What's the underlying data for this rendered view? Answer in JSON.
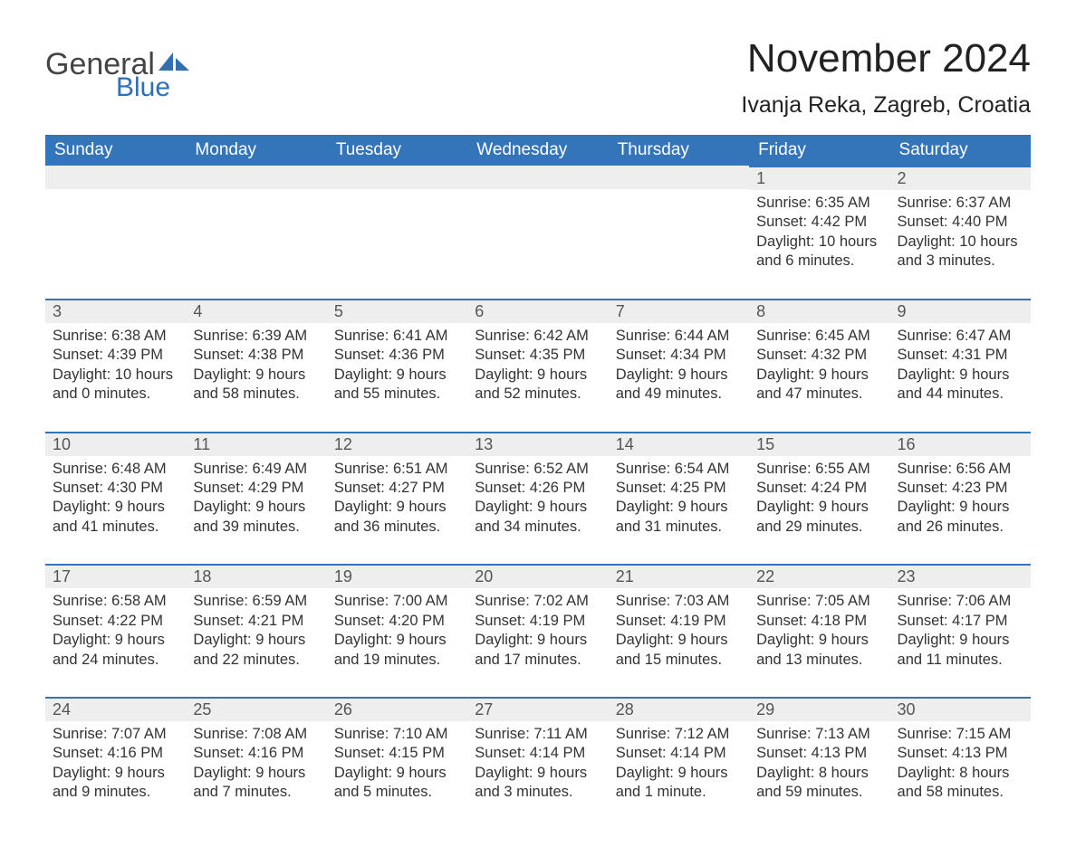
{
  "logo": {
    "text1": "General",
    "text2": "Blue",
    "accent_color": "#2e6fb5"
  },
  "header": {
    "month_title": "November 2024",
    "location": "Ivanja Reka, Zagreb, Croatia"
  },
  "colors": {
    "header_bg": "#3474b9",
    "day_bar_bg": "#eeeeee",
    "day_bar_border": "#3474b9"
  },
  "weekdays": [
    "Sunday",
    "Monday",
    "Tuesday",
    "Wednesday",
    "Thursday",
    "Friday",
    "Saturday"
  ],
  "weeks": [
    [
      null,
      null,
      null,
      null,
      null,
      {
        "n": "1",
        "sunrise": "Sunrise: 6:35 AM",
        "sunset": "Sunset: 4:42 PM",
        "daylight": "Daylight: 10 hours and 6 minutes."
      },
      {
        "n": "2",
        "sunrise": "Sunrise: 6:37 AM",
        "sunset": "Sunset: 4:40 PM",
        "daylight": "Daylight: 10 hours and 3 minutes."
      }
    ],
    [
      {
        "n": "3",
        "sunrise": "Sunrise: 6:38 AM",
        "sunset": "Sunset: 4:39 PM",
        "daylight": "Daylight: 10 hours and 0 minutes."
      },
      {
        "n": "4",
        "sunrise": "Sunrise: 6:39 AM",
        "sunset": "Sunset: 4:38 PM",
        "daylight": "Daylight: 9 hours and 58 minutes."
      },
      {
        "n": "5",
        "sunrise": "Sunrise: 6:41 AM",
        "sunset": "Sunset: 4:36 PM",
        "daylight": "Daylight: 9 hours and 55 minutes."
      },
      {
        "n": "6",
        "sunrise": "Sunrise: 6:42 AM",
        "sunset": "Sunset: 4:35 PM",
        "daylight": "Daylight: 9 hours and 52 minutes."
      },
      {
        "n": "7",
        "sunrise": "Sunrise: 6:44 AM",
        "sunset": "Sunset: 4:34 PM",
        "daylight": "Daylight: 9 hours and 49 minutes."
      },
      {
        "n": "8",
        "sunrise": "Sunrise: 6:45 AM",
        "sunset": "Sunset: 4:32 PM",
        "daylight": "Daylight: 9 hours and 47 minutes."
      },
      {
        "n": "9",
        "sunrise": "Sunrise: 6:47 AM",
        "sunset": "Sunset: 4:31 PM",
        "daylight": "Daylight: 9 hours and 44 minutes."
      }
    ],
    [
      {
        "n": "10",
        "sunrise": "Sunrise: 6:48 AM",
        "sunset": "Sunset: 4:30 PM",
        "daylight": "Daylight: 9 hours and 41 minutes."
      },
      {
        "n": "11",
        "sunrise": "Sunrise: 6:49 AM",
        "sunset": "Sunset: 4:29 PM",
        "daylight": "Daylight: 9 hours and 39 minutes."
      },
      {
        "n": "12",
        "sunrise": "Sunrise: 6:51 AM",
        "sunset": "Sunset: 4:27 PM",
        "daylight": "Daylight: 9 hours and 36 minutes."
      },
      {
        "n": "13",
        "sunrise": "Sunrise: 6:52 AM",
        "sunset": "Sunset: 4:26 PM",
        "daylight": "Daylight: 9 hours and 34 minutes."
      },
      {
        "n": "14",
        "sunrise": "Sunrise: 6:54 AM",
        "sunset": "Sunset: 4:25 PM",
        "daylight": "Daylight: 9 hours and 31 minutes."
      },
      {
        "n": "15",
        "sunrise": "Sunrise: 6:55 AM",
        "sunset": "Sunset: 4:24 PM",
        "daylight": "Daylight: 9 hours and 29 minutes."
      },
      {
        "n": "16",
        "sunrise": "Sunrise: 6:56 AM",
        "sunset": "Sunset: 4:23 PM",
        "daylight": "Daylight: 9 hours and 26 minutes."
      }
    ],
    [
      {
        "n": "17",
        "sunrise": "Sunrise: 6:58 AM",
        "sunset": "Sunset: 4:22 PM",
        "daylight": "Daylight: 9 hours and 24 minutes."
      },
      {
        "n": "18",
        "sunrise": "Sunrise: 6:59 AM",
        "sunset": "Sunset: 4:21 PM",
        "daylight": "Daylight: 9 hours and 22 minutes."
      },
      {
        "n": "19",
        "sunrise": "Sunrise: 7:00 AM",
        "sunset": "Sunset: 4:20 PM",
        "daylight": "Daylight: 9 hours and 19 minutes."
      },
      {
        "n": "20",
        "sunrise": "Sunrise: 7:02 AM",
        "sunset": "Sunset: 4:19 PM",
        "daylight": "Daylight: 9 hours and 17 minutes."
      },
      {
        "n": "21",
        "sunrise": "Sunrise: 7:03 AM",
        "sunset": "Sunset: 4:19 PM",
        "daylight": "Daylight: 9 hours and 15 minutes."
      },
      {
        "n": "22",
        "sunrise": "Sunrise: 7:05 AM",
        "sunset": "Sunset: 4:18 PM",
        "daylight": "Daylight: 9 hours and 13 minutes."
      },
      {
        "n": "23",
        "sunrise": "Sunrise: 7:06 AM",
        "sunset": "Sunset: 4:17 PM",
        "daylight": "Daylight: 9 hours and 11 minutes."
      }
    ],
    [
      {
        "n": "24",
        "sunrise": "Sunrise: 7:07 AM",
        "sunset": "Sunset: 4:16 PM",
        "daylight": "Daylight: 9 hours and 9 minutes."
      },
      {
        "n": "25",
        "sunrise": "Sunrise: 7:08 AM",
        "sunset": "Sunset: 4:16 PM",
        "daylight": "Daylight: 9 hours and 7 minutes."
      },
      {
        "n": "26",
        "sunrise": "Sunrise: 7:10 AM",
        "sunset": "Sunset: 4:15 PM",
        "daylight": "Daylight: 9 hours and 5 minutes."
      },
      {
        "n": "27",
        "sunrise": "Sunrise: 7:11 AM",
        "sunset": "Sunset: 4:14 PM",
        "daylight": "Daylight: 9 hours and 3 minutes."
      },
      {
        "n": "28",
        "sunrise": "Sunrise: 7:12 AM",
        "sunset": "Sunset: 4:14 PM",
        "daylight": "Daylight: 9 hours and 1 minute."
      },
      {
        "n": "29",
        "sunrise": "Sunrise: 7:13 AM",
        "sunset": "Sunset: 4:13 PM",
        "daylight": "Daylight: 8 hours and 59 minutes."
      },
      {
        "n": "30",
        "sunrise": "Sunrise: 7:15 AM",
        "sunset": "Sunset: 4:13 PM",
        "daylight": "Daylight: 8 hours and 58 minutes."
      }
    ]
  ]
}
